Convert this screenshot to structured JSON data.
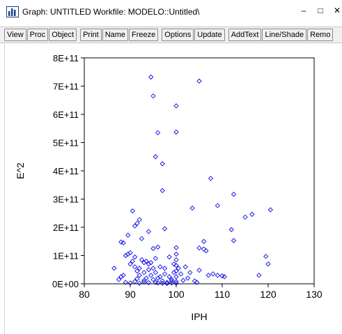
{
  "window": {
    "title": "Graph: UNTITLED   Workfile: MODELO::Untitled\\",
    "minimize_glyph": "–",
    "maximize_glyph": "□",
    "close_glyph": "✕",
    "icon": "bar-chart-icon"
  },
  "toolbar": {
    "groups": [
      [
        "View",
        "Proc",
        "Object"
      ],
      [
        "Print",
        "Name",
        "Freeze"
      ],
      [
        "Options",
        "Update"
      ],
      [
        "AddText",
        "Line/Shade",
        "Remo"
      ]
    ]
  },
  "colors": {
    "marker": "#1f1fe8",
    "axis": "#000000"
  },
  "chart_data": {
    "type": "scatter",
    "title": "",
    "xlabel": "IPH",
    "ylabel": "E^2",
    "xlim": [
      80,
      130
    ],
    "ylim": [
      0,
      800000000000
    ],
    "xticks": [
      80,
      90,
      100,
      110,
      120,
      130
    ],
    "xtick_labels": [
      "80",
      "90",
      "100",
      "110",
      "120",
      "130"
    ],
    "yticks": [
      0,
      100000000000,
      200000000000,
      300000000000,
      400000000000,
      500000000000,
      600000000000,
      700000000000,
      800000000000
    ],
    "ytick_labels": [
      "0E+00",
      "1E+11",
      "2E+11",
      "3E+11",
      "4E+11",
      "5E+11",
      "6E+11",
      "7E+11",
      "8E+11"
    ],
    "grid": false,
    "marker": "diamond-open",
    "points": [
      [
        94.5,
        732000000000.0
      ],
      [
        105,
        718000000000.0
      ],
      [
        95,
        665000000000.0
      ],
      [
        100,
        630000000000.0
      ],
      [
        96,
        535000000000.0
      ],
      [
        100,
        537000000000.0
      ],
      [
        95.5,
        450000000000.0
      ],
      [
        97,
        425000000000.0
      ],
      [
        107.5,
        373000000000.0
      ],
      [
        97,
        330000000000.0
      ],
      [
        112.5,
        317000000000.0
      ],
      [
        109,
        277000000000.0
      ],
      [
        103.5,
        268000000000.0
      ],
      [
        120.5,
        262000000000.0
      ],
      [
        116.5,
        246000000000.0
      ],
      [
        115,
        236000000000.0
      ],
      [
        90.5,
        258000000000.0
      ],
      [
        92,
        227000000000.0
      ],
      [
        91.5,
        214000000000.0
      ],
      [
        91,
        205000000000.0
      ],
      [
        97.5,
        195000000000.0
      ],
      [
        112,
        192000000000.0
      ],
      [
        94,
        185000000000.0
      ],
      [
        89.5,
        172000000000.0
      ],
      [
        92.5,
        160000000000.0
      ],
      [
        112.5,
        153000000000.0
      ],
      [
        88,
        148000000000.0
      ],
      [
        88.5,
        145000000000.0
      ],
      [
        96,
        130000000000.0
      ],
      [
        95,
        125000000000.0
      ],
      [
        100,
        128000000000.0
      ],
      [
        105,
        127000000000.0
      ],
      [
        106,
        123000000000.0
      ],
      [
        106.5,
        117000000000.0
      ],
      [
        106,
        150000000000.0
      ],
      [
        119.5,
        97000000000.0
      ],
      [
        86.5,
        55000000000.0
      ],
      [
        87.5,
        15000000000.0
      ],
      [
        88,
        25000000000.0
      ],
      [
        88.5,
        30000000000.0
      ],
      [
        89,
        100000000000.0
      ],
      [
        89.5,
        105000000000.0
      ],
      [
        90,
        110000000000.0
      ],
      [
        90,
        70000000000.0
      ],
      [
        90.5,
        80000000000.0
      ],
      [
        91,
        95000000000.0
      ],
      [
        91,
        60000000000.0
      ],
      [
        91.5,
        45000000000.0
      ],
      [
        92,
        30000000000.0
      ],
      [
        92,
        55000000000.0
      ],
      [
        92.5,
        85000000000.0
      ],
      [
        93,
        75000000000.0
      ],
      [
        93,
        40000000000.0
      ],
      [
        93.5,
        80000000000.0
      ],
      [
        93.5,
        20000000000.0
      ],
      [
        94,
        70000000000.0
      ],
      [
        94,
        50000000000.0
      ],
      [
        94.5,
        75000000000.0
      ],
      [
        94.5,
        30000000000.0
      ],
      [
        95,
        55000000000.0
      ],
      [
        95,
        15000000000.0
      ],
      [
        95.5,
        40000000000.0
      ],
      [
        95.5,
        5000000000.0
      ],
      [
        96,
        20000000000.0
      ],
      [
        96.5,
        60000000000.0
      ],
      [
        97,
        10000000000.0
      ],
      [
        97.5,
        35000000000.0
      ],
      [
        98,
        5000000000.0
      ],
      [
        98.5,
        25000000000.0
      ],
      [
        99,
        15000000000.0
      ],
      [
        99.5,
        70000000000.0
      ],
      [
        99.5,
        40000000000.0
      ],
      [
        100,
        105000000000.0
      ],
      [
        100,
        85000000000.0
      ],
      [
        100,
        65000000000.0
      ],
      [
        100,
        45000000000.0
      ],
      [
        100,
        25000000000.0
      ],
      [
        100,
        8000000000.0
      ],
      [
        100,
        2000000000.0
      ],
      [
        100.5,
        55000000000.0
      ],
      [
        101,
        35000000000.0
      ],
      [
        101.5,
        12000000000.0
      ],
      [
        102,
        60000000000.0
      ],
      [
        102.5,
        20000000000.0
      ],
      [
        103,
        40000000000.0
      ],
      [
        104,
        10000000000.0
      ],
      [
        104.5,
        5000000000.0
      ],
      [
        105,
        48000000000.0
      ],
      [
        107,
        30000000000.0
      ],
      [
        108,
        35000000000.0
      ],
      [
        109,
        30000000000.0
      ],
      [
        110,
        28000000000.0
      ],
      [
        110.5,
        25000000000.0
      ],
      [
        118,
        30000000000.0
      ],
      [
        120,
        70000000000.0
      ],
      [
        89,
        5000000000.0
      ],
      [
        90,
        3000000000.0
      ],
      [
        91,
        8000000000.0
      ],
      [
        92,
        2000000000.0
      ],
      [
        93,
        6000000000.0
      ],
      [
        94,
        4000000000.0
      ],
      [
        96,
        3000000000.0
      ],
      [
        97,
        2000000000.0
      ],
      [
        98,
        1000000000.0
      ],
      [
        99,
        3000000000.0
      ],
      [
        99,
        10000000000.0
      ],
      [
        93,
        12000000000.0
      ],
      [
        91.5,
        18000000000.0
      ],
      [
        95.5,
        90000000000.0
      ],
      [
        96.5,
        25000000000.0
      ],
      [
        97.5,
        55000000000.0
      ],
      [
        98.5,
        95000000000.0
      ]
    ]
  }
}
